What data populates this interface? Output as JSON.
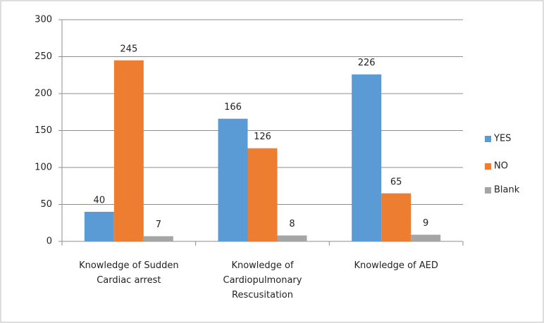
{
  "chart_data": {
    "type": "bar",
    "categories": [
      "Knowledge of Sudden Cardiac arrest",
      "Knowledge of Cardiopulmonary Rescusitation",
      "Knowledge of AED"
    ],
    "series": [
      {
        "name": "YES",
        "color": "#5b9bd5",
        "values": [
          40,
          166,
          226
        ]
      },
      {
        "name": "NO",
        "color": "#ed7d31",
        "values": [
          245,
          126,
          65
        ]
      },
      {
        "name": "Blank",
        "color": "#a5a5a5",
        "values": [
          7,
          8,
          9
        ]
      }
    ],
    "ylim": [
      0,
      300
    ],
    "yticks": [
      0,
      50,
      100,
      150,
      200,
      250,
      300
    ],
    "grid": true,
    "legend": "right"
  }
}
